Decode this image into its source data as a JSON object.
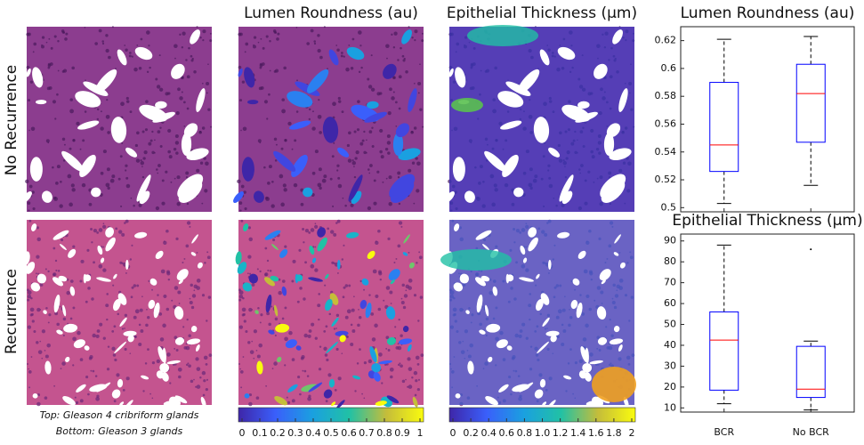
{
  "panels": {
    "col_titles": [
      "Lumen Roundness (au)",
      "Epithelial Thickness (μm)"
    ],
    "row_labels": [
      "No Recurrence",
      "Recurrence"
    ],
    "caption": [
      "Top: Gleason 4 cribriform glands",
      "Bottom: Gleason 3 glands"
    ],
    "colorbars": [
      {
        "lim": [
          0,
          1
        ],
        "ticks": [
          0,
          0.1,
          0.2,
          0.3,
          0.4,
          0.5,
          0.6,
          0.7,
          0.8,
          0.9,
          1
        ]
      },
      {
        "lim": [
          0,
          2
        ],
        "ticks": [
          0,
          0.2,
          0.4,
          0.6,
          0.8,
          {
            "value": 1,
            "label": "1.0"
          },
          1.2,
          1.4,
          1.6,
          1.8,
          2
        ]
      }
    ]
  },
  "chart_data": [
    {
      "type": "box",
      "title": "Lumen Roundness (au)",
      "categories": [
        "BCR",
        "No BCR"
      ],
      "boxes": [
        {
          "min": 0.503,
          "q1": 0.526,
          "median": 0.545,
          "q3": 0.59,
          "max": 0.621
        },
        {
          "min": 0.516,
          "q1": 0.547,
          "median": 0.582,
          "q3": 0.603,
          "max": 0.623
        }
      ],
      "box_color": "#0000ff",
      "median_color": "#ff0000",
      "ylim": [
        0.497,
        0.63
      ],
      "yticks": [
        0.5,
        0.52,
        0.54,
        0.56,
        0.58,
        0.6,
        0.62
      ]
    },
    {
      "type": "box",
      "title": "Epithelial Thickness (μm)",
      "categories": [
        "BCR",
        "No BCR"
      ],
      "boxes": [
        {
          "min": 12,
          "q1": 18.5,
          "median": 42.5,
          "q3": 56,
          "max": 88
        },
        {
          "min": 9,
          "q1": 15,
          "median": 19,
          "q3": 39.5,
          "max": 42,
          "outliers": [
            86
          ]
        }
      ],
      "box_color": "#0000ff",
      "median_color": "#ff0000",
      "ylim": [
        8,
        93.3
      ],
      "yticks": [
        10,
        20,
        30,
        40,
        50,
        60,
        70,
        80,
        90
      ]
    }
  ]
}
